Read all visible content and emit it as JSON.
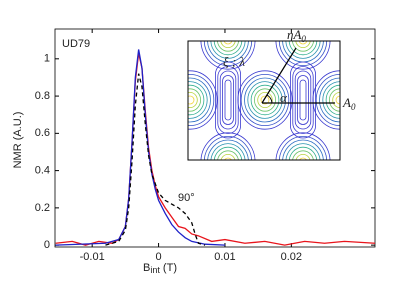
{
  "chart_data": {
    "type": "line",
    "y_label": "NMR (A.U.)",
    "x_label": {
      "base": "B",
      "sub": "int",
      "unit": " (T)"
    },
    "annotations": {
      "sample": "UD79",
      "angle": "90°"
    },
    "xlim": [
      -0.0156,
      0.0326
    ],
    "ylim": [
      -0.01,
      1.16
    ],
    "xticks": [
      -0.01,
      0,
      0.01,
      0.02
    ],
    "yticks": [
      0,
      0.2,
      0.4,
      0.6,
      0.8,
      1
    ],
    "series": [
      {
        "color": "#e8141b",
        "dash": false,
        "x": [
          -0.0155,
          -0.013,
          -0.011,
          -0.009,
          -0.007,
          -0.006,
          -0.005,
          -0.0045,
          -0.004,
          -0.0035,
          -0.003,
          -0.0025,
          -0.002,
          -0.0015,
          -0.001,
          -0.0005,
          0,
          0.001,
          0.002,
          0.003,
          0.004,
          0.005,
          0.006,
          0.008,
          0.01,
          0.013,
          0.016,
          0.019,
          0.022,
          0.025,
          0.028,
          0.0326
        ],
        "values": [
          0.01,
          0.02,
          0.0,
          0.02,
          0.01,
          0.03,
          0.1,
          0.25,
          0.55,
          0.88,
          1.03,
          0.95,
          0.72,
          0.52,
          0.4,
          0.32,
          0.26,
          0.2,
          0.15,
          0.1,
          0.09,
          0.06,
          0.05,
          0.02,
          0.03,
          0.01,
          0.02,
          0.0,
          0.02,
          0.01,
          0.02,
          0.01
        ]
      },
      {
        "color": "#1f22c8",
        "dash": false,
        "x": [
          -0.0155,
          -0.008,
          -0.006,
          -0.005,
          -0.0045,
          -0.004,
          -0.0035,
          -0.003,
          -0.0025,
          -0.002,
          -0.0015,
          -0.001,
          -0.0005,
          0,
          0.001,
          0.002,
          0.003,
          0.004,
          0.005,
          0.007,
          0.01
        ],
        "values": [
          0,
          0.01,
          0.03,
          0.1,
          0.25,
          0.55,
          0.9,
          1.05,
          0.95,
          0.7,
          0.5,
          0.38,
          0.3,
          0.24,
          0.17,
          0.11,
          0.07,
          0.04,
          0.02,
          0.005,
          0
        ]
      },
      {
        "color": "#000000",
        "dash": true,
        "x": [
          -0.008,
          -0.006,
          -0.005,
          -0.0045,
          -0.004,
          -0.0035,
          -0.003,
          -0.0025,
          -0.002,
          -0.0015,
          -0.001,
          0,
          0.001,
          0.002,
          0.003,
          0.004,
          0.005,
          0.0055,
          0.006,
          0.007
        ],
        "values": [
          0,
          0.02,
          0.08,
          0.2,
          0.45,
          0.75,
          0.92,
          0.85,
          0.65,
          0.48,
          0.38,
          0.28,
          0.24,
          0.22,
          0.2,
          0.17,
          0.12,
          0.06,
          0.01,
          0
        ]
      }
    ],
    "inset": {
      "corner_label": "ξ ; λ",
      "eta_label": {
        "base": "ηA",
        "sub": "0"
      },
      "alpha_label": "α",
      "a0_label": {
        "base": "A",
        "sub": "0"
      }
    }
  }
}
